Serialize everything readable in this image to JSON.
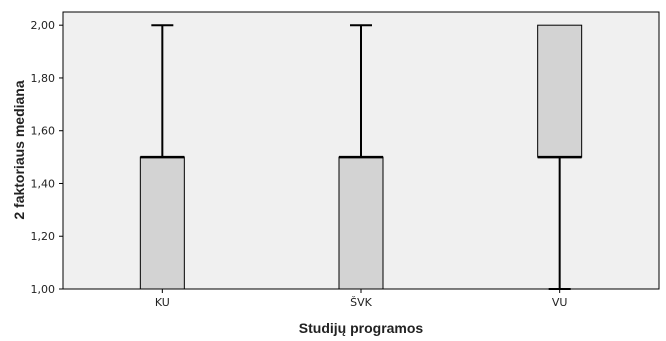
{
  "chart_data": {
    "type": "boxplot",
    "title": "",
    "xlabel": "Studijų programos",
    "ylabel": "2 faktoriaus mediana",
    "categories": [
      "KU",
      "ŠVK",
      "VU"
    ],
    "ylim": [
      1.0,
      2.05
    ],
    "yticks": [
      1.0,
      1.2,
      1.4,
      1.6,
      1.8,
      2.0
    ],
    "ytick_labels": [
      "1,00",
      "1,20",
      "1,40",
      "1,60",
      "1,80",
      "2,00"
    ],
    "boxes": [
      {
        "category": "KU",
        "min": 1.0,
        "q1": 1.0,
        "median": 1.5,
        "q3": 1.5,
        "max": 2.0
      },
      {
        "category": "ŠVK",
        "min": 1.0,
        "q1": 1.0,
        "median": 1.5,
        "q3": 1.5,
        "max": 2.0
      },
      {
        "category": "VU",
        "min": 1.0,
        "q1": 1.5,
        "median": 1.5,
        "q3": 2.0,
        "max": 2.0
      }
    ],
    "grid": false,
    "colors": {
      "plot_background": "#f0f0f0",
      "box_fill": "#d3d3d3",
      "line": "#000000"
    }
  }
}
